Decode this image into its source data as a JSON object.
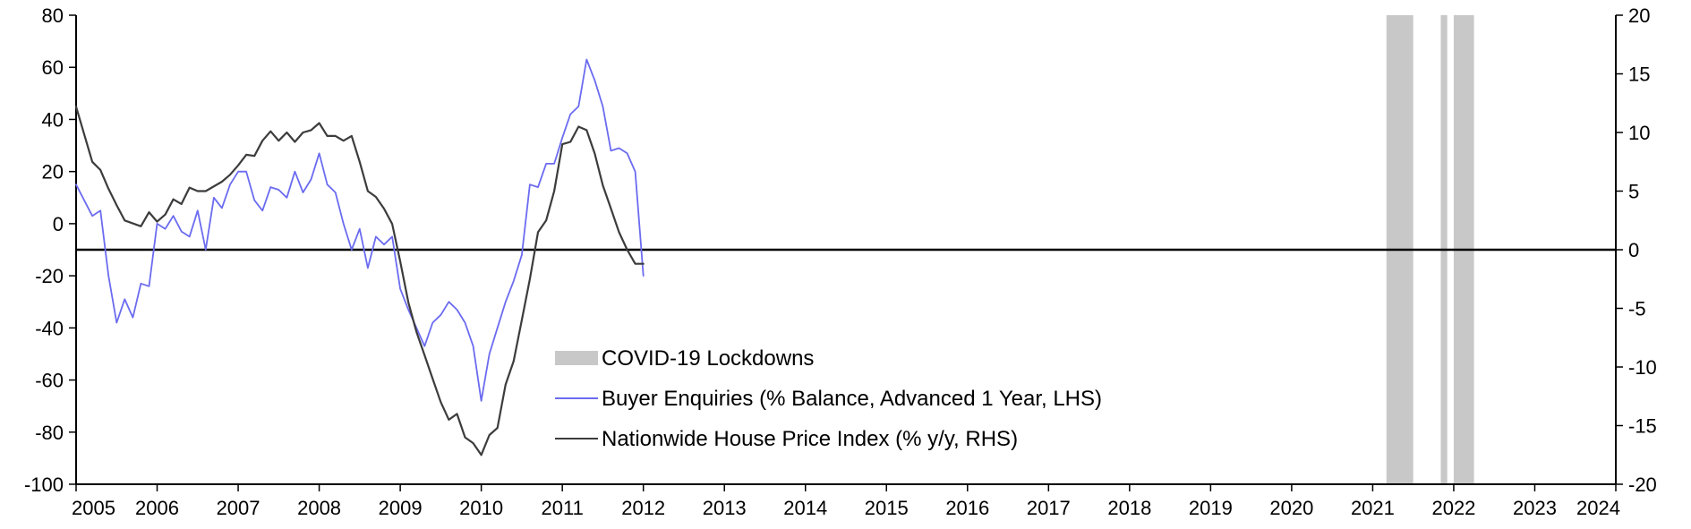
{
  "chart_data": {
    "type": "line",
    "title": "",
    "x_range": [
      2005,
      2024
    ],
    "x_ticks": [
      "2005",
      "2006",
      "2007",
      "2008",
      "2009",
      "2010",
      "2011",
      "2012",
      "2013",
      "2014",
      "2015",
      "2016",
      "2017",
      "2018",
      "2019",
      "2020",
      "2021",
      "2022",
      "2023",
      "2024"
    ],
    "left_axis": {
      "label": "",
      "ylim": [
        -100,
        80
      ],
      "ticks": [
        "80",
        "60",
        "40",
        "20",
        "0",
        "-20",
        "-40",
        "-60",
        "-80",
        "-100"
      ]
    },
    "right_axis": {
      "label": "",
      "ylim": [
        -20,
        20
      ],
      "ticks": [
        "20",
        "15",
        "10",
        "5",
        "0",
        "-5",
        "-10",
        "-15",
        "-20"
      ]
    },
    "zero_line_right": 0,
    "shaded_periods": [
      {
        "start": 2021.17,
        "end": 2021.5
      },
      {
        "start": 2021.84,
        "end": 2021.92
      },
      {
        "start": 2022.0,
        "end": 2022.25
      }
    ],
    "legend": {
      "position": "center-bottom",
      "entries": [
        {
          "label": "COVID-19 Lockdowns",
          "kind": "bar"
        },
        {
          "label": "Buyer Enquiries (% Balance, Advanced 1 Year, LHS)",
          "kind": "line"
        },
        {
          "label": "Nationwide House Price Index (% y/y, RHS)",
          "kind": "line"
        }
      ]
    },
    "colors": {
      "shading": "#c8c8c8",
      "buyer_enquiries": "#6b6bf0",
      "house_price": "#3c3c3c",
      "axis": "#000000"
    },
    "series": [
      {
        "name": "Buyer Enquiries (% Balance, Advanced 1 Year, LHS)",
        "axis": "left",
        "points": [
          [
            2005.0,
            15
          ],
          [
            2005.2,
            3
          ],
          [
            2005.3,
            5
          ],
          [
            2005.4,
            -20
          ],
          [
            2005.5,
            -38
          ],
          [
            2005.6,
            -29
          ],
          [
            2005.7,
            -36
          ],
          [
            2005.8,
            -23
          ],
          [
            2005.9,
            -24
          ],
          [
            2006.0,
            0
          ],
          [
            2006.1,
            -2
          ],
          [
            2006.2,
            3
          ],
          [
            2006.3,
            -3
          ],
          [
            2006.4,
            -5
          ],
          [
            2006.5,
            5
          ],
          [
            2006.6,
            -10
          ],
          [
            2006.7,
            10
          ],
          [
            2006.8,
            6
          ],
          [
            2006.9,
            15
          ],
          [
            2007.0,
            20
          ],
          [
            2007.1,
            20
          ],
          [
            2007.2,
            9
          ],
          [
            2007.3,
            5
          ],
          [
            2007.4,
            14
          ],
          [
            2007.5,
            13
          ],
          [
            2007.6,
            10
          ],
          [
            2007.7,
            20
          ],
          [
            2007.8,
            12
          ],
          [
            2007.9,
            17
          ],
          [
            2008.0,
            27
          ],
          [
            2008.1,
            15
          ],
          [
            2008.2,
            12
          ],
          [
            2008.3,
            0
          ],
          [
            2008.4,
            -10
          ],
          [
            2008.5,
            -2
          ],
          [
            2008.6,
            -17
          ],
          [
            2008.7,
            -5
          ],
          [
            2008.8,
            -8
          ],
          [
            2008.9,
            -5
          ],
          [
            2009.0,
            -25
          ],
          [
            2009.1,
            -33
          ],
          [
            2009.2,
            -40
          ],
          [
            2009.3,
            -47
          ],
          [
            2009.4,
            -38
          ],
          [
            2009.5,
            -35
          ],
          [
            2009.6,
            -30
          ],
          [
            2009.7,
            -33
          ],
          [
            2009.8,
            -38
          ],
          [
            2009.9,
            -47
          ],
          [
            2010.0,
            -68
          ],
          [
            2010.1,
            -50
          ],
          [
            2010.2,
            -40
          ],
          [
            2010.3,
            -30
          ],
          [
            2010.4,
            -22
          ],
          [
            2010.5,
            -12
          ],
          [
            2010.6,
            15
          ],
          [
            2010.7,
            14
          ],
          [
            2010.8,
            23
          ],
          [
            2010.9,
            23
          ],
          [
            2011.0,
            33
          ],
          [
            2011.1,
            42
          ],
          [
            2011.2,
            45
          ],
          [
            2011.3,
            63
          ],
          [
            2011.4,
            55
          ],
          [
            2011.5,
            45
          ],
          [
            2011.6,
            28
          ],
          [
            2011.7,
            29
          ],
          [
            2011.8,
            27
          ],
          [
            2011.9,
            20
          ],
          [
            2012.0,
            -20
          ]
        ]
      },
      {
        "name": "Nationwide House Price Index (% y/y, RHS)",
        "axis": "right",
        "points": [
          [
            2005.0,
            12.2
          ],
          [
            2005.2,
            7.5
          ],
          [
            2005.3,
            6.8
          ],
          [
            2005.4,
            5.2
          ],
          [
            2005.5,
            3.8
          ],
          [
            2005.6,
            2.5
          ],
          [
            2005.8,
            2.0
          ],
          [
            2005.9,
            3.2
          ],
          [
            2006.0,
            2.4
          ],
          [
            2006.1,
            3.0
          ],
          [
            2006.2,
            4.3
          ],
          [
            2006.3,
            3.9
          ],
          [
            2006.4,
            5.3
          ],
          [
            2006.5,
            5.0
          ],
          [
            2006.6,
            5.0
          ],
          [
            2006.8,
            5.8
          ],
          [
            2006.9,
            6.4
          ],
          [
            2007.0,
            7.2
          ],
          [
            2007.1,
            8.1
          ],
          [
            2007.2,
            8.0
          ],
          [
            2007.3,
            9.3
          ],
          [
            2007.4,
            10.1
          ],
          [
            2007.5,
            9.3
          ],
          [
            2007.6,
            10.0
          ],
          [
            2007.7,
            9.2
          ],
          [
            2007.8,
            10.0
          ],
          [
            2007.9,
            10.2
          ],
          [
            2008.0,
            10.8
          ],
          [
            2008.1,
            9.7
          ],
          [
            2008.2,
            9.7
          ],
          [
            2008.3,
            9.3
          ],
          [
            2008.4,
            9.7
          ],
          [
            2008.5,
            7.5
          ],
          [
            2008.6,
            5.0
          ],
          [
            2008.7,
            4.5
          ],
          [
            2008.8,
            3.5
          ],
          [
            2008.9,
            2.2
          ],
          [
            2009.0,
            -1.0
          ],
          [
            2009.1,
            -4.5
          ],
          [
            2009.2,
            -7.0
          ],
          [
            2009.3,
            -9.0
          ],
          [
            2009.4,
            -11.0
          ],
          [
            2009.5,
            -13.0
          ],
          [
            2009.6,
            -14.5
          ],
          [
            2009.7,
            -14.0
          ],
          [
            2009.8,
            -16.0
          ],
          [
            2009.9,
            -16.5
          ],
          [
            2010.0,
            -17.5
          ],
          [
            2010.1,
            -15.8
          ],
          [
            2010.2,
            -15.2
          ],
          [
            2010.3,
            -11.5
          ],
          [
            2010.4,
            -9.5
          ],
          [
            2010.5,
            -6.0
          ],
          [
            2010.6,
            -2.5
          ],
          [
            2010.7,
            1.5
          ],
          [
            2010.8,
            2.5
          ],
          [
            2010.9,
            5.0
          ],
          [
            2011.0,
            9.0
          ],
          [
            2011.1,
            9.2
          ],
          [
            2011.2,
            10.5
          ],
          [
            2011.3,
            10.2
          ],
          [
            2011.4,
            8.2
          ],
          [
            2011.5,
            5.5
          ],
          [
            2011.6,
            3.5
          ],
          [
            2011.7,
            1.5
          ],
          [
            2011.8,
            0.0
          ],
          [
            2011.9,
            -1.2
          ],
          [
            2012.0,
            -1.2
          ]
        ]
      }
    ]
  }
}
